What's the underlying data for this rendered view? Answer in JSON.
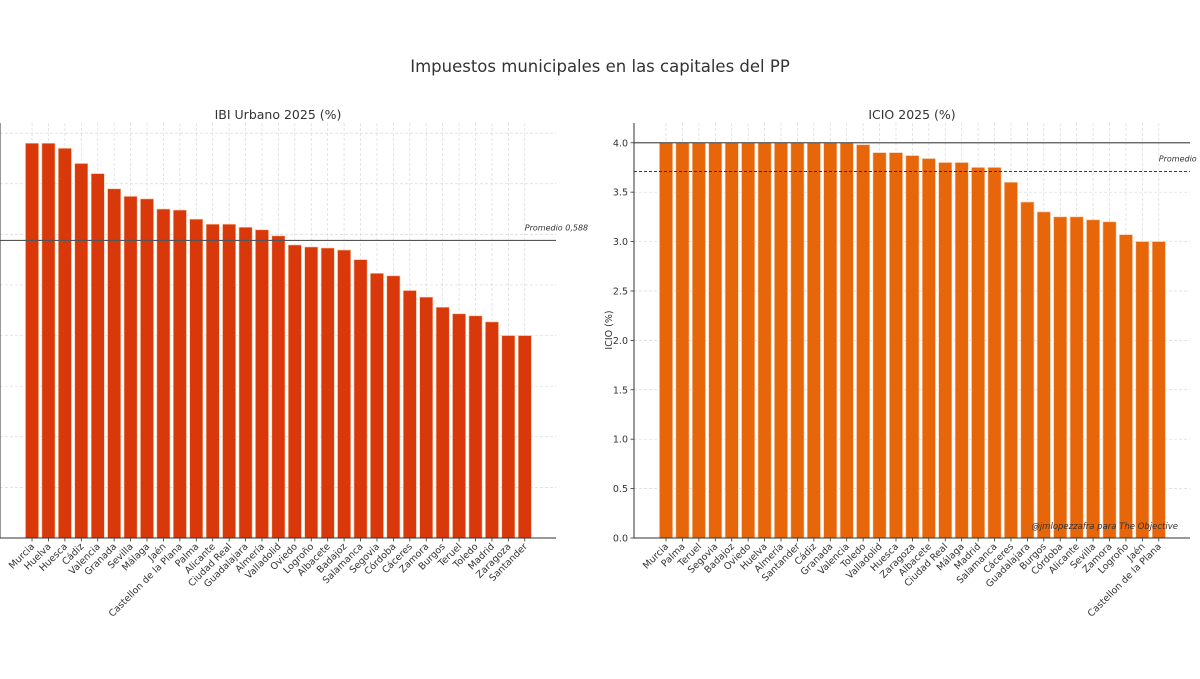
{
  "title": "Impuestos municipales en las capitales del PP",
  "watermark": "@jmlopezzafra para The Objective",
  "colors": {
    "ibi_bar": "#d9380a",
    "icio_bar": "#e8660a",
    "grid": "#d9d9d9",
    "axis": "#333333"
  },
  "chart_data": [
    {
      "type": "bar",
      "title": "IBI Urbano 2025 (%)",
      "xlabel": "",
      "ylabel": "",
      "ylim": [
        0,
        0.82
      ],
      "yticks": [
        0,
        0.1,
        0.2,
        0.3,
        0.4,
        0.5,
        0.6,
        0.7,
        0.8
      ],
      "grid": true,
      "categories": [
        "Murcia",
        "Huelva",
        "Huesca",
        "Cádiz",
        "Valencia",
        "Granada",
        "Sevilla",
        "Málaga",
        "Jaén",
        "Castellon de la Plana",
        "Palma",
        "Alicante",
        "Ciudad Real",
        "Guadalajara",
        "Almería",
        "Valladolid",
        "Oviedo",
        "Logroño",
        "Albacete",
        "Badajoz",
        "Salamanca",
        "Segovia",
        "Córdoba",
        "Cáceres",
        "Zamora",
        "Burgos",
        "Teruel",
        "Toledo",
        "Madrid",
        "Zaragoza",
        "Santander"
      ],
      "values": [
        0.78,
        0.78,
        0.77,
        0.74,
        0.72,
        0.69,
        0.675,
        0.67,
        0.65,
        0.648,
        0.63,
        0.62,
        0.62,
        0.614,
        0.609,
        0.597,
        0.579,
        0.575,
        0.573,
        0.569,
        0.55,
        0.523,
        0.518,
        0.489,
        0.476,
        0.456,
        0.443,
        0.439,
        0.427,
        0.4,
        0.4
      ],
      "reference_lines": [
        {
          "value": 0.588,
          "label": "Promedio 0,588",
          "style": "solid"
        }
      ]
    },
    {
      "type": "bar",
      "title": "ICIO 2025 (%)",
      "xlabel": "",
      "ylabel": "ICIO (%)",
      "ylim": [
        0,
        4.2
      ],
      "yticks": [
        0.0,
        0.5,
        1.0,
        1.5,
        2.0,
        2.5,
        3.0,
        3.5,
        4.0
      ],
      "ytick_labels": [
        "0.0",
        "0.5",
        "1.0",
        "1.5",
        "2.0",
        "2.5",
        "3.0",
        "3.5",
        "4.0"
      ],
      "grid": true,
      "categories": [
        "Murcia",
        "Palma",
        "Teruel",
        "Segovia",
        "Badajoz",
        "Oviedo",
        "Huelva",
        "Almería",
        "Santander",
        "Cádiz",
        "Granada",
        "Valencia",
        "Toledo",
        "Valladolid",
        "Huesca",
        "Zaragoza",
        "Albacete",
        "Ciudad Real",
        "Málaga",
        "Madrid",
        "Salamanca",
        "Cáceres",
        "Guadalajara",
        "Burgos",
        "Córdoba",
        "Alicante",
        "Sevilla",
        "Zamora",
        "Logroño",
        "Jaén",
        "Castellon de la Plana"
      ],
      "values": [
        4.0,
        4.0,
        4.0,
        4.0,
        4.0,
        4.0,
        4.0,
        4.0,
        4.0,
        4.0,
        4.0,
        4.0,
        3.98,
        3.9,
        3.9,
        3.87,
        3.84,
        3.8,
        3.8,
        3.75,
        3.75,
        3.6,
        3.4,
        3.3,
        3.25,
        3.25,
        3.22,
        3.2,
        3.07,
        3.0,
        3.0
      ],
      "reference_lines": [
        {
          "value": 4.0,
          "label": "",
          "style": "solid"
        },
        {
          "value": 3.71,
          "label": "Promedio",
          "style": "dashed"
        }
      ]
    }
  ]
}
